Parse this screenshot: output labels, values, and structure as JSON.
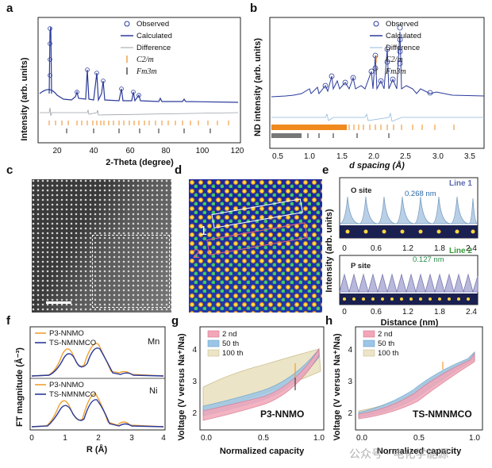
{
  "panels": {
    "a": {
      "label": "a",
      "xlabel": "2-Theta (degree)",
      "ylabel": "Intensity (arb. units)",
      "xticks": [
        "20",
        "40",
        "60",
        "80",
        "100",
        "120"
      ],
      "legend": [
        "Observed",
        "Calculated",
        "Difference",
        "C2/m",
        "Fm3m"
      ]
    },
    "b": {
      "label": "b",
      "xlabel": "d spacing (Å)",
      "ylabel": "ND intensity (arb. units)",
      "xticks": [
        "0.5",
        "1.0",
        "1.5",
        "2.0",
        "2.5",
        "3.0",
        "3.5"
      ],
      "legend": [
        "Observed",
        "Calculated",
        "Difference",
        "C2/m",
        "Fm3m"
      ]
    },
    "c": {
      "label": "c"
    },
    "d": {
      "label": "d",
      "line1": "1",
      "line2": "2"
    },
    "e": {
      "label": "e",
      "ylabel": "Intensity (arb. units)",
      "xlabel": "Distance (nm)",
      "line1": "Line 1",
      "line2": "Line 2",
      "osite": "O site",
      "psite": "P site",
      "d1": "0.268 nm",
      "d2": "0.127 nm",
      "xticks": [
        "0",
        "0.6",
        "1.2",
        "1.8",
        "2.4"
      ]
    },
    "f": {
      "label": "f",
      "ylabel": "FT magnitude (Å⁻³)",
      "xlabel": "R (Å)",
      "mn": "Mn",
      "ni": "Ni",
      "s1": "P3-NNMO",
      "s2": "TS-NMNMCO",
      "xticks": [
        "0",
        "1",
        "2",
        "3",
        "4"
      ]
    },
    "g": {
      "label": "g",
      "ylabel": "Voltage (V versus Na⁺/Na)",
      "xlabel": "Normalized capacity",
      "name": "P3-NNMO",
      "legend": [
        "2 nd",
        "50 th",
        "100 th"
      ],
      "xticks": [
        "0.0",
        "0.5",
        "1.0"
      ],
      "yticks": [
        "2",
        "3",
        "4"
      ]
    },
    "h": {
      "label": "h",
      "ylabel": "Voltage (V versus Na⁺/Na)",
      "xlabel": "Normalized capacity",
      "name": "TS-NMNMCO",
      "legend": [
        "2 nd",
        "50 th",
        "100 th"
      ],
      "xticks": [
        "0.0",
        "0.5",
        "1.0"
      ],
      "yticks": [
        "2",
        "3",
        "4"
      ]
    }
  },
  "watermark": "公众号 · 电化学能源",
  "colors": {
    "navy": "#2a3a9a",
    "orange": "#f08a1e",
    "lightblue": "#8fb8e0",
    "pink": "#e88aa0",
    "sky": "#7fb6dc",
    "beige": "#e8dfc0"
  }
}
